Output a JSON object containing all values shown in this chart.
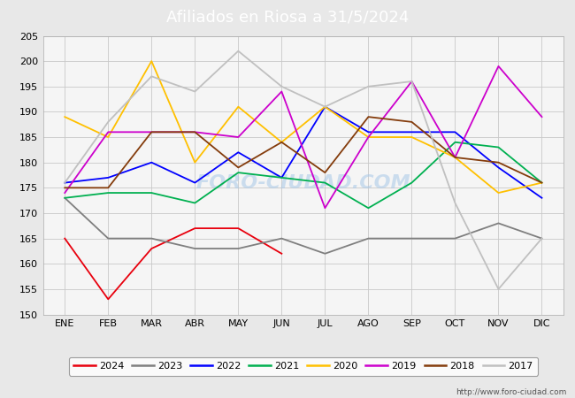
{
  "title": "Afiliados en Riosa a 31/5/2024",
  "background_color": "#e8e8e8",
  "plot_bg_color": "#f5f5f5",
  "header_color": "#5b9bd5",
  "xlabel_ticks": [
    "ENE",
    "FEB",
    "MAR",
    "ABR",
    "MAY",
    "JUN",
    "JUL",
    "AGO",
    "SEP",
    "OCT",
    "NOV",
    "DIC"
  ],
  "ylim": [
    150,
    205
  ],
  "yticks": [
    150,
    155,
    160,
    165,
    170,
    175,
    180,
    185,
    190,
    195,
    200,
    205
  ],
  "watermark": "FORO-CIUDAD.COM",
  "url": "http://www.foro-ciudad.com",
  "series": {
    "2024": {
      "color": "#e8000d",
      "values": [
        165,
        153,
        163,
        167,
        167,
        162,
        null,
        null,
        null,
        null,
        null,
        null
      ]
    },
    "2023": {
      "color": "#7f7f7f",
      "values": [
        173,
        165,
        165,
        163,
        163,
        165,
        162,
        165,
        165,
        165,
        168,
        165
      ]
    },
    "2022": {
      "color": "#0000ff",
      "values": [
        176,
        177,
        180,
        176,
        182,
        177,
        191,
        186,
        186,
        186,
        179,
        173
      ]
    },
    "2021": {
      "color": "#00b050",
      "values": [
        173,
        174,
        174,
        172,
        178,
        177,
        176,
        171,
        176,
        184,
        183,
        176
      ]
    },
    "2020": {
      "color": "#ffc000",
      "values": [
        189,
        185,
        200,
        180,
        191,
        184,
        191,
        185,
        185,
        181,
        174,
        176
      ]
    },
    "2019": {
      "color": "#cc00cc",
      "values": [
        174,
        186,
        186,
        186,
        185,
        194,
        171,
        185,
        196,
        181,
        199,
        189
      ]
    },
    "2018": {
      "color": "#843c0c",
      "values": [
        175,
        175,
        186,
        186,
        179,
        184,
        178,
        189,
        188,
        181,
        180,
        176
      ]
    },
    "2017": {
      "color": "#c0c0c0",
      "values": [
        176,
        188,
        197,
        194,
        202,
        195,
        191,
        195,
        196,
        172,
        155,
        165
      ]
    }
  },
  "legend_order": [
    "2024",
    "2023",
    "2022",
    "2021",
    "2020",
    "2019",
    "2018",
    "2017"
  ]
}
